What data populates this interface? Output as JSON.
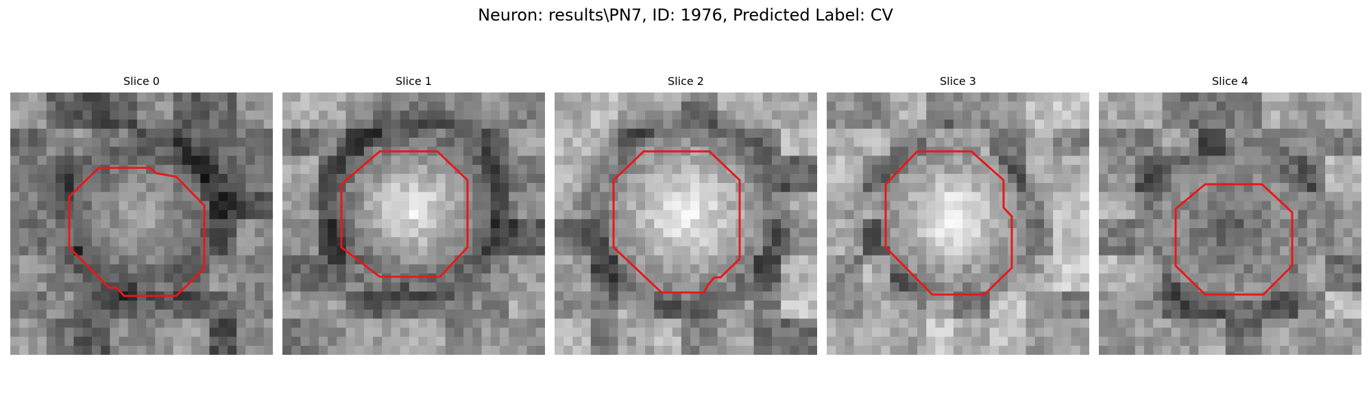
{
  "figure": {
    "title": "Neuron: results\\PN7, ID: 1976, Predicted Label: CV",
    "outline_color": "#e8181a"
  },
  "slices": [
    {
      "title": "Slice 0",
      "icon": "grayscale-patch-with-red-octagon-outline"
    },
    {
      "title": "Slice 1",
      "icon": "grayscale-patch-with-red-octagon-outline"
    },
    {
      "title": "Slice 2",
      "icon": "grayscale-patch-with-red-octagon-outline"
    },
    {
      "title": "Slice 3",
      "icon": "grayscale-patch-with-red-octagon-outline"
    },
    {
      "title": "Slice 4",
      "icon": "grayscale-patch-with-red-octagon-outline"
    }
  ]
}
